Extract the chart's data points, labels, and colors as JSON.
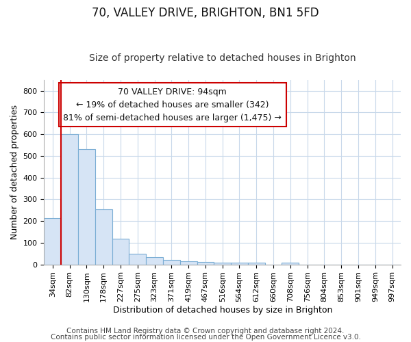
{
  "title1": "70, VALLEY DRIVE, BRIGHTON, BN1 5FD",
  "title2": "Size of property relative to detached houses in Brighton",
  "xlabel": "Distribution of detached houses by size in Brighton",
  "ylabel": "Number of detached properties",
  "bar_labels": [
    "34sqm",
    "82sqm",
    "130sqm",
    "178sqm",
    "227sqm",
    "275sqm",
    "323sqm",
    "371sqm",
    "419sqm",
    "467sqm",
    "516sqm",
    "564sqm",
    "612sqm",
    "660sqm",
    "708sqm",
    "756sqm",
    "804sqm",
    "853sqm",
    "901sqm",
    "949sqm",
    "997sqm"
  ],
  "bar_values": [
    213,
    600,
    530,
    255,
    117,
    50,
    33,
    20,
    15,
    10,
    8,
    7,
    7,
    0,
    8,
    0,
    0,
    0,
    0,
    0,
    0
  ],
  "bar_color": "#d6e4f5",
  "bar_edge_color": "#7aadd4",
  "highlight_line_color": "#cc0000",
  "annotation_text": "70 VALLEY DRIVE: 94sqm\n← 19% of detached houses are smaller (342)\n81% of semi-detached houses are larger (1,475) →",
  "annotation_box_edge": "#cc0000",
  "ylim": [
    0,
    850
  ],
  "yticks": [
    0,
    100,
    200,
    300,
    400,
    500,
    600,
    700,
    800
  ],
  "footnote1": "Contains HM Land Registry data © Crown copyright and database right 2024.",
  "footnote2": "Contains public sector information licensed under the Open Government Licence v3.0.",
  "bg_color": "#ffffff",
  "grid_color": "#c8d8ea",
  "title1_fontsize": 12,
  "title2_fontsize": 10,
  "axis_label_fontsize": 9,
  "tick_fontsize": 8,
  "annotation_fontsize": 9,
  "footnote_fontsize": 7.5,
  "highlight_bar_index": 1
}
